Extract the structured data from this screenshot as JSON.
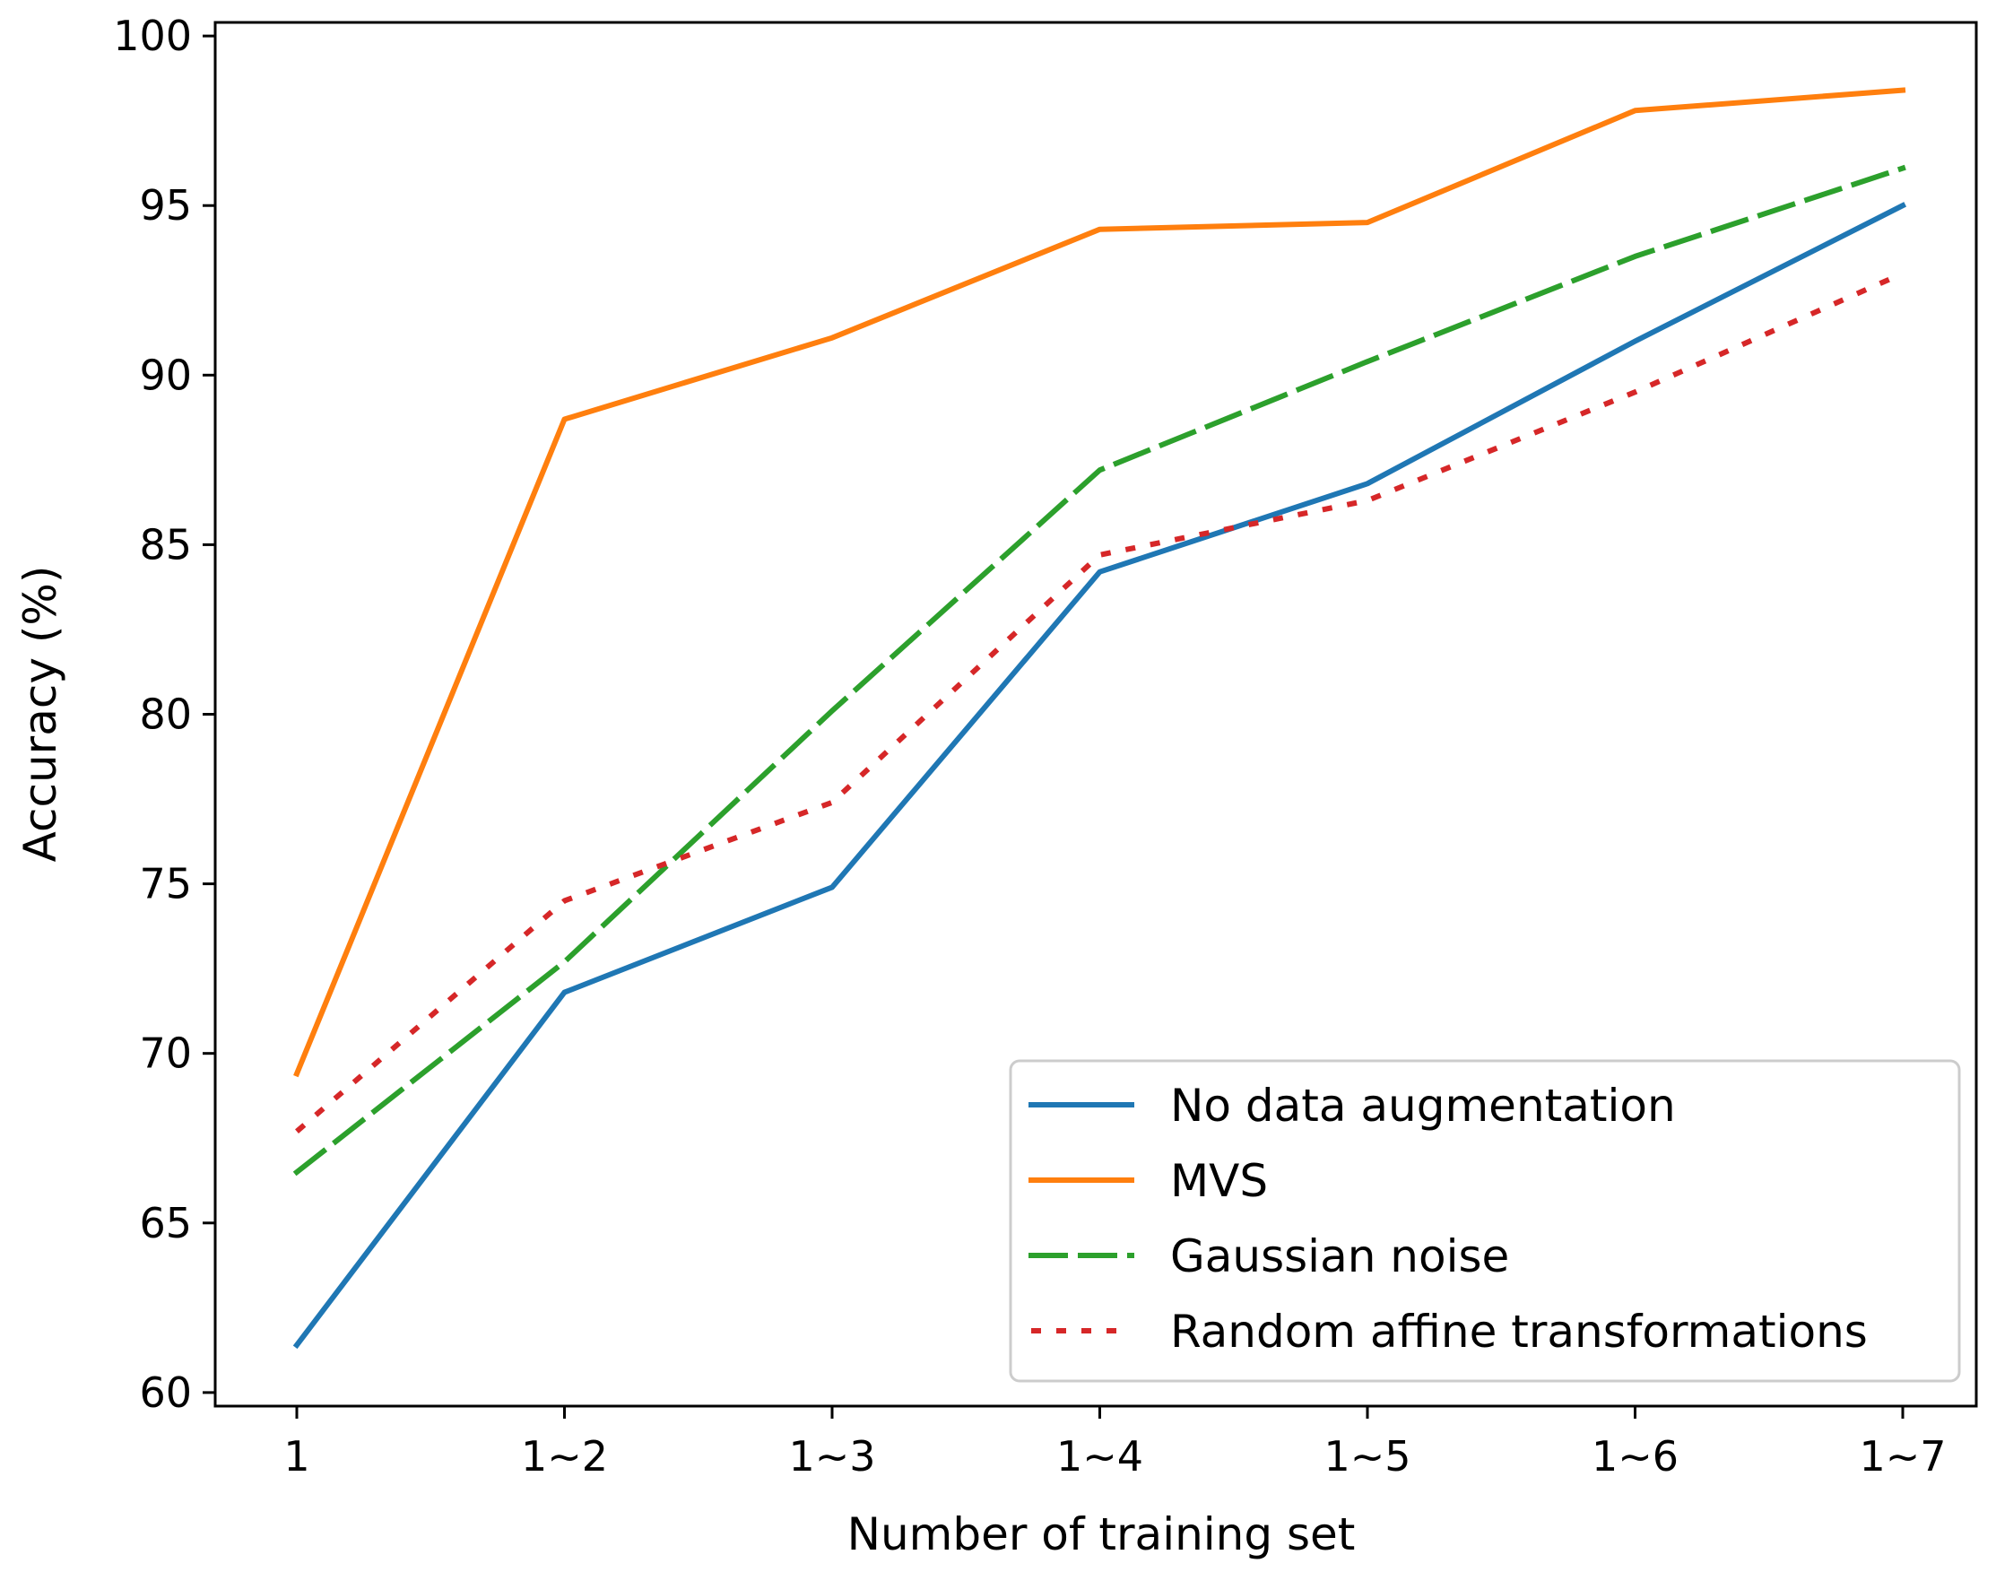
{
  "chart_data": {
    "type": "line",
    "title": "",
    "xlabel": "Number of training set",
    "ylabel": "Accuracy (%)",
    "categories": [
      "1",
      "1~2",
      "1~3",
      "1~4",
      "1~5",
      "1~6",
      "1~7"
    ],
    "ylim": [
      59.6,
      100.4
    ],
    "yticks": [
      60,
      65,
      70,
      75,
      80,
      85,
      90,
      95,
      100
    ],
    "grid": false,
    "legend_position": "bottom-right",
    "series": [
      {
        "name": "No data augmentation",
        "color": "#1f77b4",
        "style": "solid",
        "values": [
          61.4,
          71.8,
          74.9,
          84.2,
          86.8,
          91.0,
          95.0
        ]
      },
      {
        "name": "MVS",
        "color": "#ff7f0e",
        "style": "solid",
        "values": [
          69.4,
          88.7,
          91.1,
          94.3,
          94.5,
          97.8,
          98.4
        ]
      },
      {
        "name": "Gaussian noise",
        "color": "#2ca02c",
        "style": "dashed",
        "values": [
          66.5,
          72.7,
          80.1,
          87.2,
          90.4,
          93.5,
          96.1
        ]
      },
      {
        "name": "Random affine transformations",
        "color": "#d62728",
        "style": "dotted",
        "values": [
          67.7,
          74.5,
          77.4,
          84.7,
          86.3,
          89.5,
          93.0
        ]
      }
    ]
  }
}
